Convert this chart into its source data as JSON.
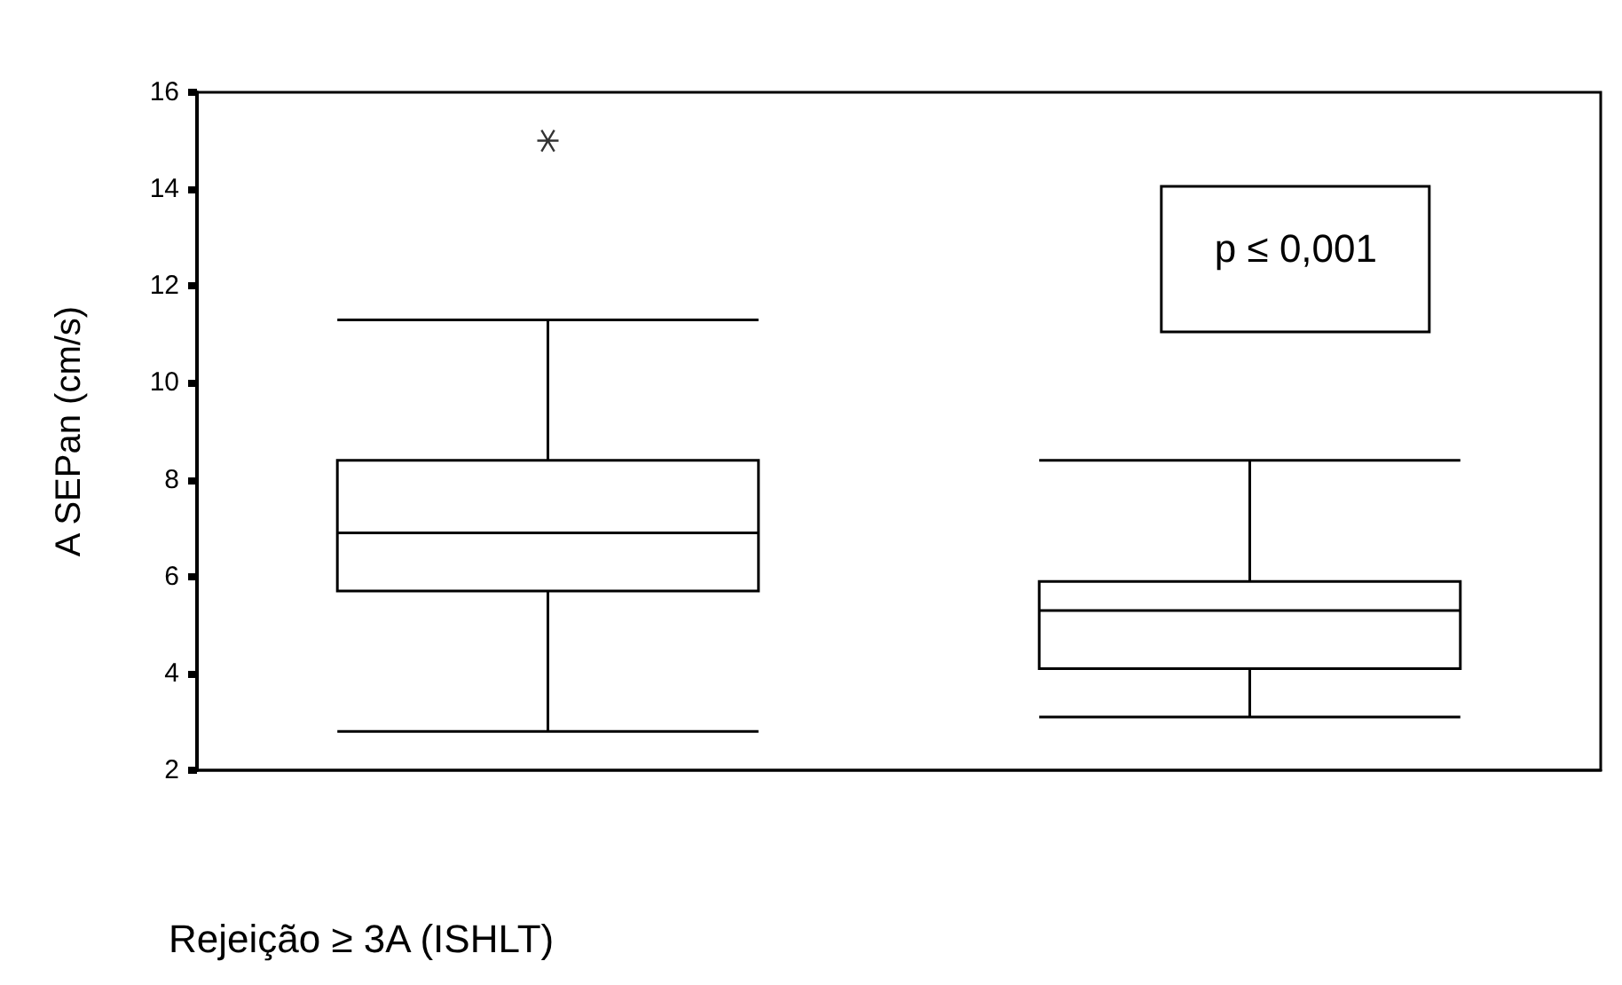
{
  "chart_data": {
    "type": "box",
    "ylabel": "A SEPan (cm/s)",
    "xlabel": "Rejeição ≥ 3A (ISHLT)",
    "categories": [
      null,
      null
    ],
    "boxes": [
      {
        "low": 2.8,
        "q1": 5.7,
        "median": 6.9,
        "q3": 8.4,
        "high": 11.3,
        "outliers": [
          15
        ]
      },
      {
        "low": 3.1,
        "q1": 4.1,
        "median": 5.3,
        "q3": 5.9,
        "high": 8.4
      }
    ],
    "ylim": [
      2,
      16
    ],
    "yticks": [
      2,
      4,
      6,
      8,
      10,
      12,
      14,
      16
    ],
    "annotations": [
      "p ≤ 0,001"
    ],
    "grid": false
  }
}
